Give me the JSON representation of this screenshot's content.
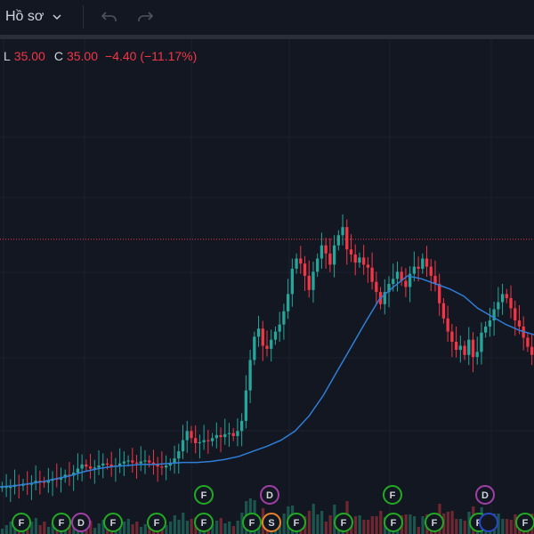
{
  "toolbar": {
    "profile_label": "Hồ sơ",
    "chevron_icon": "chevron-down-icon",
    "undo_icon": "undo-icon",
    "redo_icon": "redo-icon"
  },
  "legend": {
    "low_label": "L",
    "low_value": "35.00",
    "close_label": "C",
    "close_value": "35.00",
    "change": "−4.40 (−11.17%)"
  },
  "colors": {
    "background": "#131722",
    "up": "#26a69a",
    "down": "#f23645",
    "ma": "#2f7ed8",
    "price_line": "#f23645",
    "event_F": "#22ab22",
    "event_D": "#a23fa6",
    "event_S": "#e8822b",
    "event_blue": "#2848c8"
  },
  "chart_data": {
    "type": "candlestick",
    "price_line": 39.4,
    "ylim": [
      0,
      60
    ],
    "closes": [
      15,
      15,
      15,
      15.2,
      15.1,
      15.3,
      15.2,
      15.4,
      15.6,
      15.5,
      15.4,
      15.6,
      15.8,
      15.7,
      15.9,
      16.2,
      16.1,
      16.4,
      16.8,
      17.2,
      17.0,
      16.8,
      16.9,
      17.1,
      17.3,
      17.2,
      17.0,
      17.1,
      17.3,
      17.5,
      17.6,
      17.4,
      17.3,
      17.5,
      17.6,
      17.4,
      17.2,
      17.0,
      16.9,
      17.1,
      17.3,
      17.8,
      18.5,
      19.6,
      20.5,
      19.8,
      19.3,
      19.4,
      19.6,
      19.5,
      19.8,
      20.1,
      19.9,
      20.2,
      20.3,
      20.0,
      20.5,
      21.5,
      24.5,
      27.5,
      29.8,
      30.6,
      28.9,
      28.6,
      29.5,
      30.3,
      31.0,
      32.3,
      34.0,
      36.5,
      37.5,
      37.0,
      35.8,
      34.4,
      36.2,
      37.5,
      38.8,
      38.0,
      36.9,
      38.8,
      39.8,
      40.6,
      38.4,
      37.9,
      37.1,
      37.6,
      36.9,
      36.6,
      35.2,
      34.2,
      33.0,
      34.2,
      35.0,
      35.5,
      36.2,
      35.3,
      34.7,
      36.0,
      36.7,
      36.5,
      37.5,
      36.7,
      35.8,
      35.0,
      33.1,
      31.6,
      30.3,
      29.3,
      28.5,
      28.9,
      28.0,
      29.5,
      27.8,
      28.3,
      30.2,
      30.8,
      31.4,
      32.5,
      33.2,
      34.0,
      33.6,
      32.6,
      31.4,
      30.8,
      29.7,
      28.8,
      28.0
    ],
    "moving_average": [
      15.0,
      15.1,
      15.3,
      15.5,
      15.8,
      16.1,
      16.5,
      16.8,
      17.0,
      17.1,
      17.2,
      17.2,
      17.3,
      17.4,
      17.4,
      17.5,
      17.7,
      18.0,
      18.5,
      19.0,
      19.6,
      20.5,
      22.0,
      24.0,
      26.4,
      28.8,
      31.2,
      33.5,
      34.7,
      35.8,
      35.5,
      35.0,
      34.5,
      33.8,
      32.6,
      31.8,
      31.0,
      30.4,
      30.0
    ],
    "events_row1": [
      "F",
      "F",
      "D",
      "F",
      "F",
      "F",
      "F",
      "S",
      "F",
      "F",
      "F",
      "F",
      "F",
      "",
      "F"
    ],
    "events_row2": [
      "F",
      "D",
      "F",
      "D"
    ]
  }
}
